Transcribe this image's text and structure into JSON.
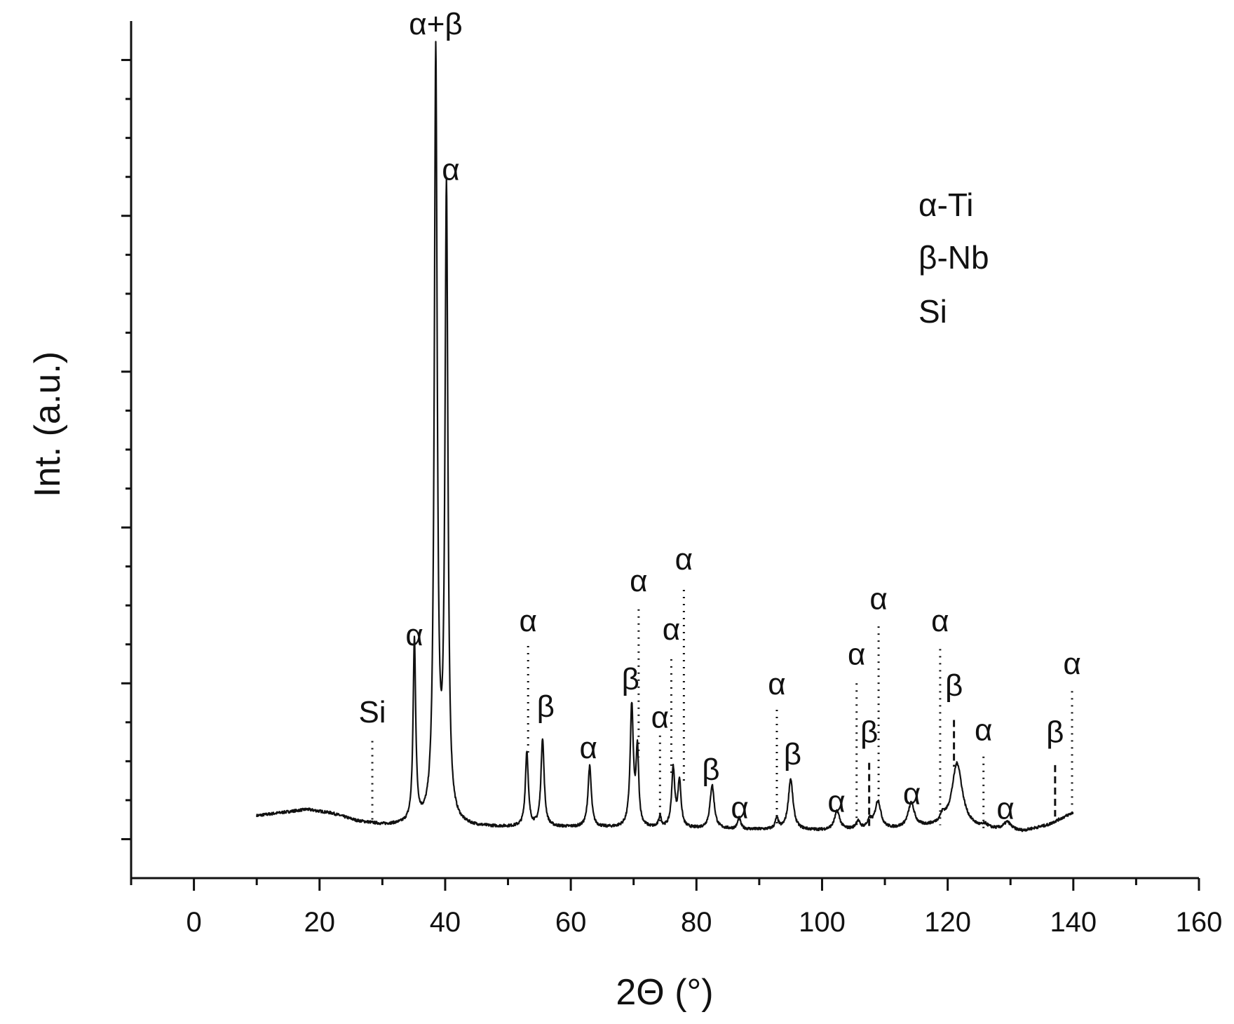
{
  "chart_data": {
    "type": "line",
    "title": "",
    "xlabel": "2Θ (°)",
    "ylabel": "Int. (a.u.)",
    "xlim": [
      -10,
      160
    ],
    "ylim": [
      -5,
      105
    ],
    "x_ticks": [
      0,
      20,
      40,
      60,
      80,
      100,
      120,
      140,
      160
    ],
    "x_tick_labels": [
      "0",
      "20",
      "40",
      "60",
      "80",
      "100",
      "120",
      "140",
      "160"
    ],
    "x_minor_step": 10,
    "y_minor_step": 5,
    "y_tick_labels_shown": false,
    "grid": false,
    "legend": {
      "position": "top-right",
      "entries": [
        "α-Ti",
        "β-Nb",
        "Si"
      ]
    },
    "series": [
      {
        "color": "#111111",
        "baseline": [
          [
            10,
            3.0
          ],
          [
            14,
            3.4
          ],
          [
            18,
            3.8
          ],
          [
            22,
            3.3
          ],
          [
            26,
            2.3
          ],
          [
            30,
            1.8
          ],
          [
            34,
            1.7
          ],
          [
            45,
            1.5
          ],
          [
            60,
            1.5
          ],
          [
            80,
            1.3
          ],
          [
            100,
            1.1
          ],
          [
            110,
            1.2
          ],
          [
            117,
            1.5
          ],
          [
            124,
            1.3
          ],
          [
            132,
            1.0
          ],
          [
            136,
            1.8
          ],
          [
            138.5,
            2.8
          ],
          [
            140,
            3.4
          ]
        ],
        "peaks": [
          {
            "x": 35.1,
            "y": 23.4,
            "w": 0.25
          },
          {
            "x": 38.5,
            "y": 98.4,
            "w": 0.28
          },
          {
            "x": 40.2,
            "y": 80.6,
            "w": 0.28
          },
          {
            "x": 53.0,
            "y": 9.6,
            "w": 0.28
          },
          {
            "x": 55.5,
            "y": 11.3,
            "w": 0.3
          },
          {
            "x": 63.0,
            "y": 7.8,
            "w": 0.32
          },
          {
            "x": 69.7,
            "y": 15.5,
            "w": 0.3
          },
          {
            "x": 70.6,
            "y": 9.6,
            "w": 0.25
          },
          {
            "x": 74.2,
            "y": 1.4,
            "w": 0.25
          },
          {
            "x": 76.3,
            "y": 7.5,
            "w": 0.3
          },
          {
            "x": 77.3,
            "y": 5.9,
            "w": 0.3
          },
          {
            "x": 82.5,
            "y": 5.6,
            "w": 0.4
          },
          {
            "x": 86.8,
            "y": 1.4,
            "w": 0.3
          },
          {
            "x": 92.8,
            "y": 1.4,
            "w": 0.3
          },
          {
            "x": 95.0,
            "y": 6.5,
            "w": 0.45
          },
          {
            "x": 102.4,
            "y": 2.4,
            "w": 0.5
          },
          {
            "x": 105.7,
            "y": 1.0,
            "w": 0.4
          },
          {
            "x": 107.6,
            "y": 1.0,
            "w": 0.45
          },
          {
            "x": 108.9,
            "y": 3.6,
            "w": 0.55
          },
          {
            "x": 114.2,
            "y": 3.1,
            "w": 0.6
          },
          {
            "x": 119.2,
            "y": 1.0,
            "w": 0.5
          },
          {
            "x": 121.5,
            "y": 8.3,
            "w": 1.0
          },
          {
            "x": 126.0,
            "y": 0.4,
            "w": 0.5
          },
          {
            "x": 129.5,
            "y": 1.0,
            "w": 0.7
          }
        ]
      }
    ],
    "annotations": [
      {
        "text": "Si",
        "x": 28.4,
        "label_y": 15.0,
        "line_top": 12.6,
        "line_bottom": 1.9,
        "style": "dotted"
      },
      {
        "text": "α",
        "x": 35.1,
        "label_y": 24.9,
        "line_top": null,
        "line_bottom": null,
        "style": "none"
      },
      {
        "text": "α+β",
        "x": 38.5,
        "label_y": 103.3,
        "line_top": null,
        "line_bottom": null,
        "style": "none"
      },
      {
        "text": "α",
        "x": 40.9,
        "label_y": 84.6,
        "line_top": null,
        "line_bottom": null,
        "style": "none"
      },
      {
        "text": "α",
        "x": 53.2,
        "label_y": 26.7,
        "line_top": 24.8,
        "line_bottom": 10.5,
        "style": "dotted"
      },
      {
        "text": "β",
        "x": 56.0,
        "label_y": 15.7,
        "line_top": null,
        "line_bottom": null,
        "style": "none"
      },
      {
        "text": "α",
        "x": 62.8,
        "label_y": 10.4,
        "line_top": null,
        "line_bottom": null,
        "style": "none"
      },
      {
        "text": "β",
        "x": 69.5,
        "label_y": 19.2,
        "line_top": null,
        "line_bottom": null,
        "style": "none"
      },
      {
        "text": "α",
        "x": 70.8,
        "label_y": 31.8,
        "line_top": 29.5,
        "line_bottom": 10.5,
        "style": "dotted"
      },
      {
        "text": "α",
        "x": 74.2,
        "label_y": 14.3,
        "line_top": 13.3,
        "line_bottom": 1.9,
        "style": "dotted"
      },
      {
        "text": "α",
        "x": 76.0,
        "label_y": 25.6,
        "line_top": 23.1,
        "line_bottom": 8.4,
        "style": "dotted"
      },
      {
        "text": "α",
        "x": 78.0,
        "label_y": 34.6,
        "line_top": 32.0,
        "line_bottom": 6.8,
        "style": "dotted"
      },
      {
        "text": "β",
        "x": 82.3,
        "label_y": 7.6,
        "line_top": null,
        "line_bottom": null,
        "style": "none"
      },
      {
        "text": "α",
        "x": 86.9,
        "label_y": 2.7,
        "line_top": null,
        "line_bottom": null,
        "style": "none"
      },
      {
        "text": "α",
        "x": 92.8,
        "label_y": 18.6,
        "line_top": 16.6,
        "line_bottom": 2.0,
        "style": "dotted"
      },
      {
        "text": "β",
        "x": 95.3,
        "label_y": 9.6,
        "line_top": null,
        "line_bottom": null,
        "style": "none"
      },
      {
        "text": "α",
        "x": 102.3,
        "label_y": 3.5,
        "line_top": null,
        "line_bottom": null,
        "style": "none"
      },
      {
        "text": "α",
        "x": 105.5,
        "label_y": 22.4,
        "line_top": 20.0,
        "line_bottom": 1.4,
        "style": "dotted"
      },
      {
        "text": "β",
        "x": 107.5,
        "label_y": 12.4,
        "line_top": 9.8,
        "line_bottom": 1.4,
        "style": "dashed"
      },
      {
        "text": "α",
        "x": 109.0,
        "label_y": 29.5,
        "line_top": 27.3,
        "line_bottom": 4.6,
        "style": "dotted"
      },
      {
        "text": "α",
        "x": 114.3,
        "label_y": 4.5,
        "line_top": null,
        "line_bottom": null,
        "style": "none"
      },
      {
        "text": "α",
        "x": 118.8,
        "label_y": 26.7,
        "line_top": 24.4,
        "line_bottom": 1.8,
        "style": "dotted"
      },
      {
        "text": "β",
        "x": 121.0,
        "label_y": 18.4,
        "line_top": 15.3,
        "line_bottom": 9.3,
        "style": "dashed"
      },
      {
        "text": "α",
        "x": 125.7,
        "label_y": 12.7,
        "line_top": 10.6,
        "line_bottom": 1.0,
        "style": "dotted"
      },
      {
        "text": "α",
        "x": 129.2,
        "label_y": 2.6,
        "line_top": null,
        "line_bottom": null,
        "style": "none"
      },
      {
        "text": "β",
        "x": 137.1,
        "label_y": 12.4,
        "line_top": 9.5,
        "line_bottom": 2.9,
        "style": "dashed"
      },
      {
        "text": "α",
        "x": 139.8,
        "label_y": 21.2,
        "line_top": 19.0,
        "line_bottom": 3.9,
        "style": "dotted"
      }
    ]
  }
}
